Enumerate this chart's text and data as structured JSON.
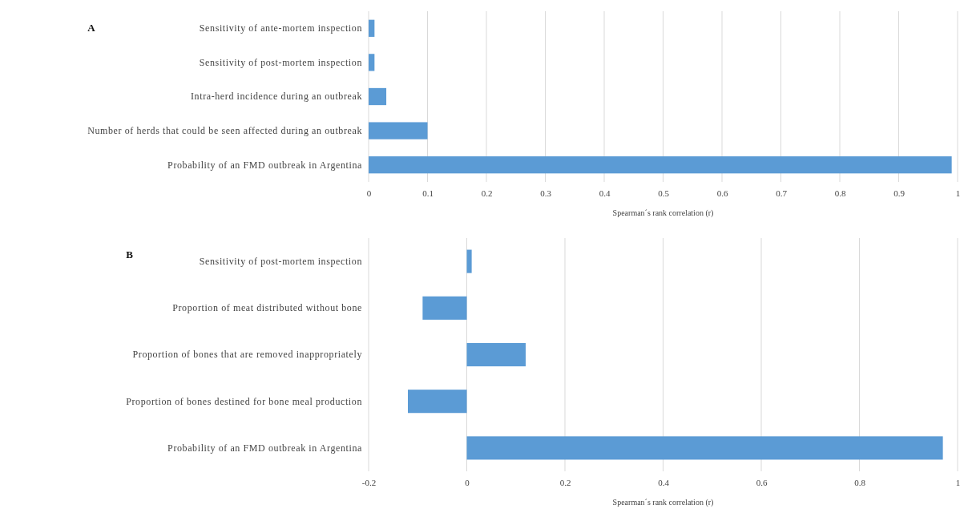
{
  "chart_data": [
    {
      "type": "bar",
      "orientation": "horizontal",
      "title": "A",
      "xlabel": "Spearman´s rank correlation (r)",
      "categories": [
        "Sensitivity of ante-mortem inspection",
        "Sensitivity of post-mortem inspection",
        "Intra-herd incidence during an outbreak",
        "Number of herds that could be seen affected during an outbreak",
        "Probability of an FMD outbreak in Argentina"
      ],
      "values": [
        0.01,
        0.01,
        0.03,
        0.1,
        0.99
      ],
      "color": "#5b9bd5",
      "xlim": [
        0,
        1
      ],
      "xticks": [
        0,
        0.1,
        0.2,
        0.3,
        0.4,
        0.5,
        0.6,
        0.7,
        0.8,
        0.9,
        1
      ],
      "grid": "x"
    },
    {
      "type": "bar",
      "orientation": "horizontal",
      "title": "B",
      "xlabel": "Spearman´s rank correlation (r)",
      "categories": [
        "Sensitivity of post-mortem inspection",
        "Proportion of meat distributed without bone",
        "Proportion of bones that are removed inappropriately",
        "Proportion of bones destined for bone meal production",
        "Probability of an FMD outbreak in Argentina"
      ],
      "values": [
        0.01,
        -0.09,
        0.12,
        -0.12,
        0.97
      ],
      "color": "#5b9bd5",
      "xlim": [
        -0.2,
        1
      ],
      "xticks": [
        -0.2,
        0,
        0.2,
        0.4,
        0.6,
        0.8,
        1
      ],
      "grid": "x"
    }
  ]
}
